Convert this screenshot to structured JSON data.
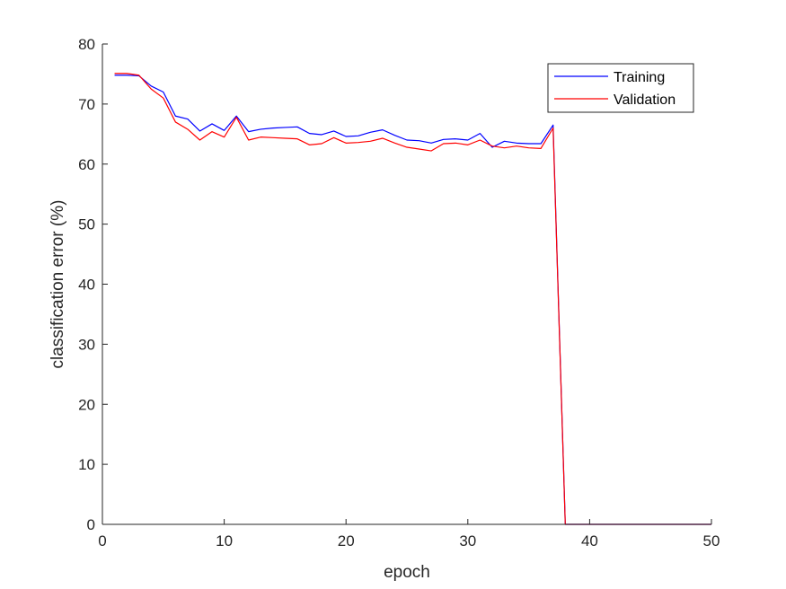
{
  "chart_data": {
    "type": "line",
    "title": "",
    "xlabel": "epoch",
    "ylabel": "classification error (%)",
    "xlim": [
      0,
      50
    ],
    "ylim": [
      0,
      80
    ],
    "xticks": [
      0,
      10,
      20,
      30,
      40,
      50
    ],
    "yticks": [
      0,
      10,
      20,
      30,
      40,
      50,
      60,
      70,
      80
    ],
    "grid": false,
    "legend_position": "top-right",
    "series": [
      {
        "name": "Training",
        "color": "#0000ff",
        "x": [
          1,
          2,
          3,
          4,
          5,
          6,
          7,
          8,
          9,
          10,
          11,
          12,
          13,
          14,
          15,
          16,
          17,
          18,
          19,
          20,
          21,
          22,
          23,
          24,
          25,
          26,
          27,
          28,
          29,
          30,
          31,
          32,
          33,
          34,
          35,
          36,
          37,
          38,
          39,
          40,
          41,
          42,
          43,
          44,
          45,
          46,
          47,
          48,
          49,
          50
        ],
        "values": [
          74.8,
          74.8,
          74.7,
          73.0,
          72.0,
          68.0,
          67.5,
          65.5,
          66.7,
          65.6,
          68.0,
          65.4,
          65.8,
          66.0,
          66.1,
          66.2,
          65.1,
          64.9,
          65.5,
          64.6,
          64.7,
          65.3,
          65.7,
          64.8,
          64.0,
          63.9,
          63.5,
          64.1,
          64.2,
          64.0,
          65.1,
          62.8,
          63.8,
          63.5,
          63.4,
          63.4,
          66.5,
          0,
          0,
          0,
          0,
          0,
          0,
          0,
          0,
          0,
          0,
          0,
          0,
          0
        ]
      },
      {
        "name": "Validation",
        "color": "#ff0000",
        "x": [
          1,
          2,
          3,
          4,
          5,
          6,
          7,
          8,
          9,
          10,
          11,
          12,
          13,
          14,
          15,
          16,
          17,
          18,
          19,
          20,
          21,
          22,
          23,
          24,
          25,
          26,
          27,
          28,
          29,
          30,
          31,
          32,
          33,
          34,
          35,
          36,
          37,
          38,
          39,
          40,
          41,
          42,
          43,
          44,
          45,
          46,
          47,
          48,
          49,
          50
        ],
        "values": [
          75.1,
          75.1,
          74.8,
          72.5,
          71.0,
          67.0,
          65.8,
          64.0,
          65.4,
          64.5,
          67.8,
          64.0,
          64.5,
          64.4,
          64.3,
          64.2,
          63.2,
          63.4,
          64.4,
          63.5,
          63.6,
          63.8,
          64.3,
          63.5,
          62.8,
          62.5,
          62.2,
          63.4,
          63.5,
          63.2,
          64.0,
          63.0,
          62.7,
          63.0,
          62.7,
          62.6,
          66.0,
          0,
          0,
          0,
          0,
          0,
          0,
          0,
          0,
          0,
          0,
          0,
          0,
          0
        ]
      }
    ]
  }
}
